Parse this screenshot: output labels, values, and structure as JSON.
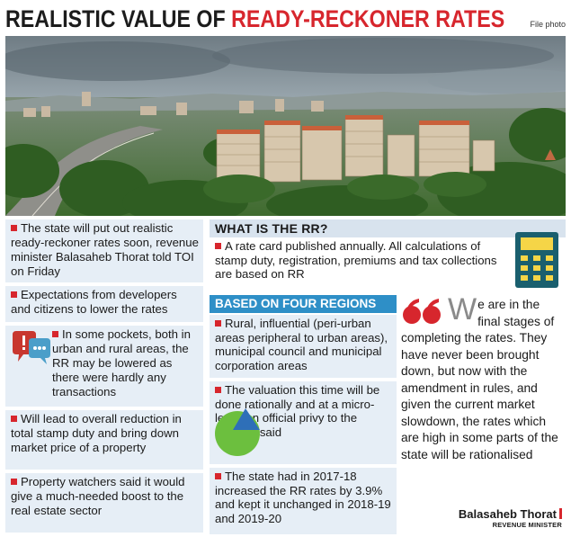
{
  "headline": {
    "part1": "REALISTIC VALUE OF",
    "part2": "READY-RECKONER RATES"
  },
  "credit": "File photo",
  "left_column": [
    "The state will put out realistic ready-reckoner rates soon, revenue minister Balasaheb Thorat told TOI on Friday",
    "Expectations from developers and citizens to lower the rates",
    "In some pockets, both in urban and rural areas, the RR may be lowered as there were hardly any transactions",
    "Will lead to overall reduction in total stamp duty and bring down market price of a property",
    "Property watchers said it would give a much-needed boost to the real estate sector"
  ],
  "what_is_rr": {
    "heading": "WHAT IS THE RR?",
    "text": "A rate card published annually. All calculations of stamp duty, registration, premiums and tax collections are based on RR"
  },
  "regions": {
    "heading": "BASED ON FOUR REGIONS",
    "items": [
      "Rural, influential (peri-urban areas peripheral to urban areas), municipal council and municipal corporation areas",
      "The valuation this time will be done rationally and at a micro-level, an official privy to the process said",
      "The state had in 2017-18 increased the RR rates by 3.9% and kept it unchanged in 2018-19 and 2019-20"
    ]
  },
  "quote": {
    "dropcap": "W",
    "text": "e are in the final stages of completing the rates. They have never been brought down, but now with the amendment in rules, and given the current market slowdown, the rates which are high in some parts of the state will be rationalised",
    "speaker": "Balasaheb Thorat",
    "role": "REVENUE MINISTER"
  },
  "colors": {
    "accent_red": "#d7262d",
    "region_blue": "#2e8fc7",
    "panel_bg": "#e6eef6",
    "calc_teal": "#1a5f6e",
    "calc_yellow": "#f5d547"
  },
  "icons": [
    "speech-bubbles-icon",
    "calculator-icon",
    "pie-chart-icon",
    "quote-marks-icon"
  ]
}
